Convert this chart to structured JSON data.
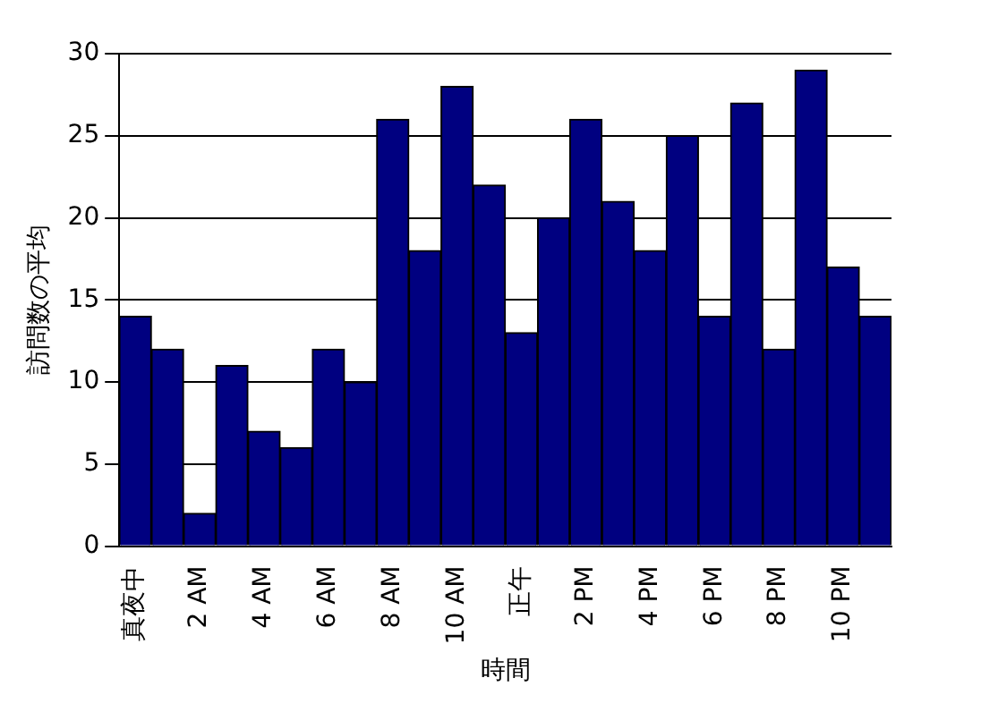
{
  "chart_data": {
    "type": "bar",
    "xlabel": "時間",
    "ylabel": "訪問数の平均",
    "categories": [
      "真夜中",
      null,
      "2 AM",
      null,
      "4 AM",
      null,
      "6 AM",
      null,
      "8 AM",
      null,
      "10 AM",
      null,
      "正午",
      null,
      "2 PM",
      null,
      "4 PM",
      null,
      "6 PM",
      null,
      "8 PM",
      null,
      "10 PM",
      null
    ],
    "values": [
      14,
      12,
      2,
      11,
      7,
      6,
      12,
      10,
      26,
      18,
      28,
      22,
      13,
      20,
      26,
      21,
      18,
      25,
      14,
      27,
      12,
      29,
      17,
      14
    ],
    "color": "#000080",
    "ylim": [
      0,
      30
    ],
    "yticks": [
      0,
      5,
      10,
      15,
      20,
      25,
      30
    ],
    "grid": "y",
    "legend": false
  }
}
